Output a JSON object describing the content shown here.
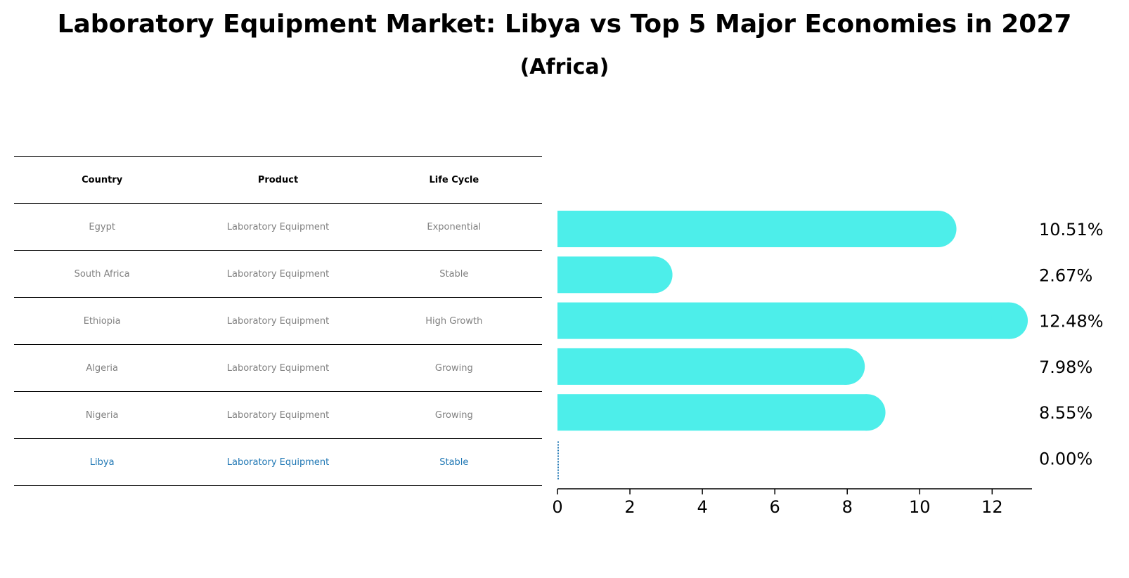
{
  "title": "Laboratory Equipment Market: Libya vs Top 5 Major Economies in 2027",
  "subtitle": "(Africa)",
  "table": {
    "headers": [
      "Country",
      "Product",
      "Life Cycle"
    ],
    "rows": [
      {
        "country": "Egypt",
        "product": "Laboratory Equipment",
        "life_cycle": "Exponential"
      },
      {
        "country": "South Africa",
        "product": "Laboratory Equipment",
        "life_cycle": "Stable"
      },
      {
        "country": "Ethiopia",
        "product": "Laboratory Equipment",
        "life_cycle": "High Growth"
      },
      {
        "country": "Algeria",
        "product": "Laboratory Equipment",
        "life_cycle": "Growing"
      },
      {
        "country": "Nigeria",
        "product": "Laboratory Equipment",
        "life_cycle": "Growing"
      },
      {
        "country": "Libya",
        "product": "Laboratory Equipment",
        "life_cycle": "Stable"
      }
    ]
  },
  "colors": {
    "bar": "#4deeea",
    "highlight": "#1f77b4",
    "muted_text": "#808080"
  },
  "chart_data": {
    "type": "bar",
    "orientation": "horizontal",
    "categories": [
      "Egypt",
      "South Africa",
      "Ethiopia",
      "Algeria",
      "Nigeria",
      "Libya"
    ],
    "values": [
      10.51,
      2.67,
      12.48,
      7.98,
      8.55,
      0.0
    ],
    "value_labels": [
      "10.51%",
      "2.67%",
      "12.48%",
      "7.98%",
      "8.55%",
      "0.00%"
    ],
    "xlim": [
      0,
      13.1
    ],
    "xticks": [
      0,
      2,
      4,
      6,
      8,
      10,
      12
    ],
    "xlabel": "",
    "ylabel": "",
    "highlight_category": "Libya"
  }
}
